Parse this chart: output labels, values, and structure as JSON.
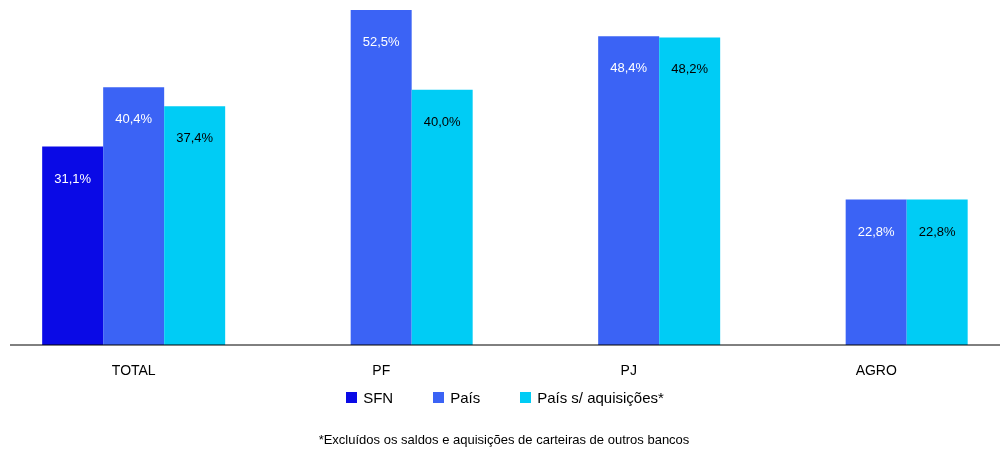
{
  "chart_data": {
    "type": "bar",
    "categories": [
      "TOTAL",
      "PF",
      "PJ",
      "AGRO"
    ],
    "series": [
      {
        "name": "SFN",
        "color": "#0a0ae6",
        "values": [
          31.1,
          null,
          null,
          null
        ],
        "value_labels": [
          "31,1%",
          null,
          null,
          null
        ]
      },
      {
        "name": "País",
        "color": "#3b63f5",
        "values": [
          40.4,
          52.5,
          48.4,
          22.8
        ],
        "value_labels": [
          "40,4%",
          "52,5%",
          "48,4%",
          "22,8%"
        ]
      },
      {
        "name": "País s/ aquisições*",
        "color": "#00ccf5",
        "values": [
          37.4,
          40.0,
          48.2,
          22.8
        ],
        "value_labels": [
          "37,4%",
          "40,0%",
          "48,2%",
          "22,8%"
        ]
      }
    ],
    "grid": false,
    "legend": "bottom",
    "annotations": [
      "*Excluídos os saldos e aquisições de carteiras de outros bancos"
    ]
  }
}
